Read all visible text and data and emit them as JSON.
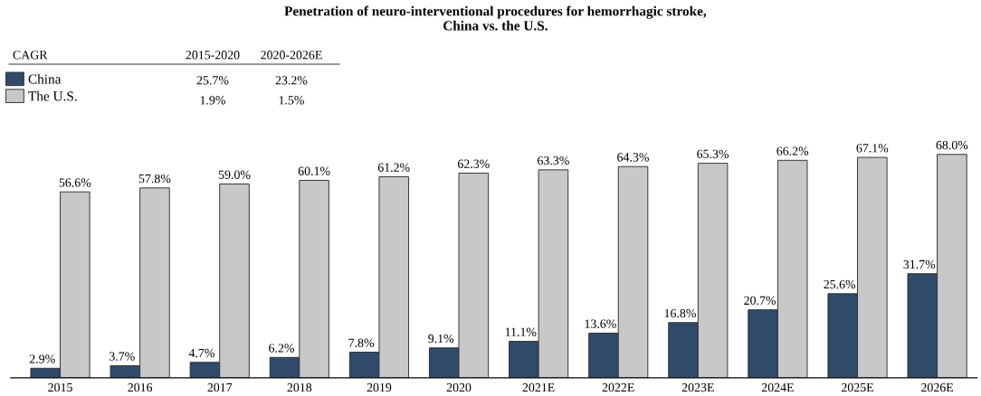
{
  "chart_data": {
    "type": "bar",
    "title": "Penetration of neuro-interventional procedures for hemorrhagic stroke,\nChina vs. the U.S.",
    "categories": [
      "2015",
      "2016",
      "2017",
      "2018",
      "2019",
      "2020",
      "2021E",
      "2022E",
      "2023E",
      "2024E",
      "2025E",
      "2026E"
    ],
    "series": [
      {
        "name": "China",
        "color": "#2f4a6b",
        "values": [
          2.9,
          3.7,
          4.7,
          6.2,
          7.8,
          9.1,
          11.1,
          13.6,
          16.8,
          20.7,
          25.6,
          31.7
        ],
        "value_labels": [
          "2.9%",
          "3.7%",
          "4.7%",
          "6.2%",
          "7.8%",
          "9.1%",
          "11.1%",
          "13.6%",
          "16.8%",
          "20.7%",
          "25.6%",
          "31.7%"
        ]
      },
      {
        "name": "The U.S.",
        "color": "#c8c8c8",
        "values": [
          56.6,
          57.8,
          59.0,
          60.1,
          61.2,
          62.3,
          63.3,
          64.3,
          65.3,
          66.2,
          67.1,
          68.0
        ],
        "value_labels": [
          "56.6%",
          "57.8%",
          "59.0%",
          "60.1%",
          "61.2%",
          "62.3%",
          "63.3%",
          "64.3%",
          "65.3%",
          "66.2%",
          "67.1%",
          "68.0%"
        ]
      }
    ],
    "annotations": [
      "CAGR",
      "2015-2020",
      "2020-2026E",
      "25.7%",
      "23.2%",
      "1.9%",
      "1.5%"
    ],
    "legend": "top left",
    "grid": false
  }
}
